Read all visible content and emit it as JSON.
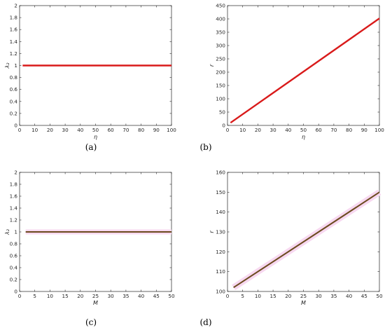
{
  "chart_data": [
    {
      "panel": "a",
      "caption": "(a)",
      "type": "line",
      "xlabel": "η",
      "ylabel": "λ₂",
      "xlim": [
        0,
        100
      ],
      "ylim": [
        0,
        2
      ],
      "xticks": [
        0,
        10,
        20,
        30,
        40,
        50,
        60,
        70,
        80,
        90,
        100
      ],
      "yticks": [
        0,
        0.2,
        0.4,
        0.6,
        0.8,
        1,
        1.2,
        1.4,
        1.6,
        1.8,
        2
      ],
      "grid": false,
      "series": [
        {
          "color": "#d91a1a",
          "x": [
            2,
            100
          ],
          "y": [
            1,
            1
          ]
        }
      ]
    },
    {
      "panel": "b",
      "caption": "(b)",
      "type": "line",
      "xlabel": "η",
      "ylabel": "r",
      "xlim": [
        0,
        100
      ],
      "ylim": [
        0,
        450
      ],
      "xticks": [
        0,
        10,
        20,
        30,
        40,
        50,
        60,
        70,
        80,
        90,
        100
      ],
      "yticks": [
        0,
        50,
        100,
        150,
        200,
        250,
        300,
        350,
        400,
        450
      ],
      "grid": false,
      "series": [
        {
          "color": "#d91a1a",
          "x": [
            2,
            100
          ],
          "y": [
            10,
            402
          ]
        }
      ]
    },
    {
      "panel": "c",
      "caption": "(c)",
      "type": "line",
      "xlabel": "M",
      "ylabel": "λ₂",
      "xlim": [
        0,
        50
      ],
      "ylim": [
        0,
        2
      ],
      "xticks": [
        0,
        5,
        10,
        15,
        20,
        25,
        30,
        35,
        40,
        45,
        50
      ],
      "yticks": [
        0,
        0.2,
        0.4,
        0.6,
        0.8,
        1,
        1.2,
        1.4,
        1.6,
        1.8,
        2
      ],
      "grid": false,
      "series": [
        {
          "color": "#f7d8f0",
          "width": 7,
          "x": [
            2,
            50
          ],
          "y": [
            1,
            1
          ]
        },
        {
          "color": "#6b4a1e",
          "width": 2,
          "x": [
            2,
            50
          ],
          "y": [
            1,
            1
          ]
        }
      ]
    },
    {
      "panel": "d",
      "caption": "(d)",
      "type": "line",
      "xlabel": "M",
      "ylabel": "r",
      "xlim": [
        0,
        50
      ],
      "ylim": [
        100,
        160
      ],
      "xticks": [
        0,
        5,
        10,
        15,
        20,
        25,
        30,
        35,
        40,
        45,
        50
      ],
      "yticks": [
        100,
        110,
        120,
        130,
        140,
        150,
        160
      ],
      "grid": false,
      "series": [
        {
          "color": "#f7d8f0",
          "width": 9,
          "x": [
            2,
            50
          ],
          "y": [
            102,
            150
          ]
        },
        {
          "color": "#6b4a1e",
          "width": 2,
          "x": [
            2,
            50
          ],
          "y": [
            102,
            150
          ]
        }
      ]
    }
  ]
}
